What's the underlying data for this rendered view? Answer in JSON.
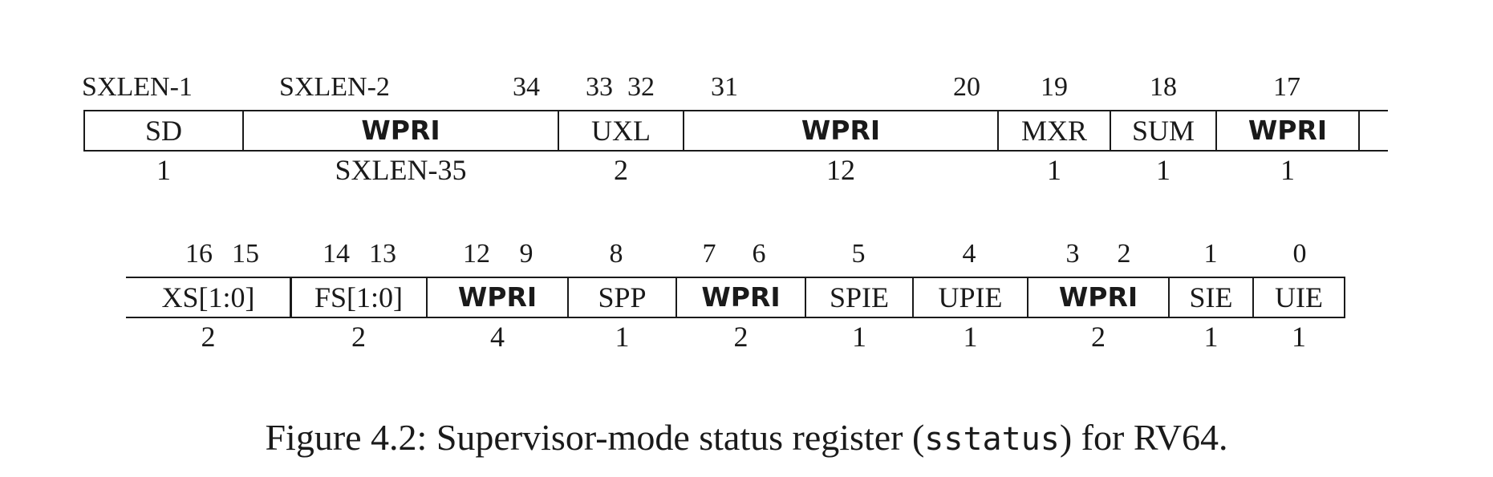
{
  "row1": {
    "bit_labels": [
      "SXLEN-1",
      "SXLEN-2",
      "34",
      "33",
      "32",
      "31",
      "20",
      "19",
      "18",
      "17"
    ],
    "fields": [
      {
        "name": "SD",
        "bold": false,
        "width": "1"
      },
      {
        "name": "WPRI",
        "bold": true,
        "width": "SXLEN-35"
      },
      {
        "name": "UXL",
        "bold": false,
        "width": "2"
      },
      {
        "name": "WPRI",
        "bold": true,
        "width": "12"
      },
      {
        "name": "MXR",
        "bold": false,
        "width": "1"
      },
      {
        "name": "SUM",
        "bold": false,
        "width": "1"
      },
      {
        "name": "WPRI",
        "bold": true,
        "width": "1"
      },
      {
        "name": "",
        "bold": false,
        "width": ""
      }
    ]
  },
  "row2": {
    "bit_labels": [
      "16",
      "15",
      "14",
      "13",
      "12",
      "9",
      "8",
      "7",
      "6",
      "5",
      "4",
      "3",
      "2",
      "1",
      "0"
    ],
    "fields": [
      {
        "name": "XS[1:0]",
        "bold": false,
        "width": "2"
      },
      {
        "name": "FS[1:0]",
        "bold": false,
        "width": "2"
      },
      {
        "name": "WPRI",
        "bold": true,
        "width": "4"
      },
      {
        "name": "SPP",
        "bold": false,
        "width": "1"
      },
      {
        "name": "WPRI",
        "bold": true,
        "width": "2"
      },
      {
        "name": "SPIE",
        "bold": false,
        "width": "1"
      },
      {
        "name": "UPIE",
        "bold": false,
        "width": "1"
      },
      {
        "name": "WPRI",
        "bold": true,
        "width": "2"
      },
      {
        "name": "SIE",
        "bold": false,
        "width": "1"
      },
      {
        "name": "UIE",
        "bold": false,
        "width": "1"
      }
    ]
  },
  "caption": {
    "prefix": "Figure 4.2: Supervisor-mode status register (",
    "code": "sstatus",
    "suffix": ") for RV64."
  }
}
